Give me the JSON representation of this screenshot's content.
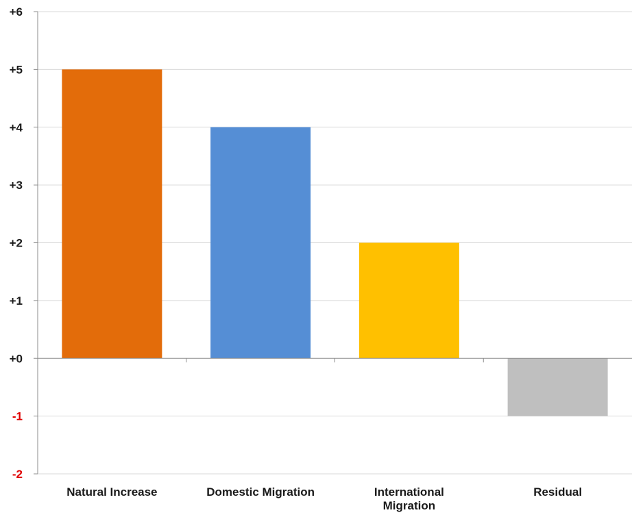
{
  "chart_data": {
    "type": "bar",
    "title": "",
    "xlabel": "",
    "ylabel": "",
    "categories": [
      [
        "Natural Increase"
      ],
      [
        "Domestic Migration"
      ],
      [
        "International",
        "Migration"
      ],
      [
        "Residual"
      ]
    ],
    "values": [
      5,
      4,
      2,
      -1
    ],
    "bar_colors": [
      "#E36C0A",
      "#558ED5",
      "#FFC000",
      "#BFBFBF"
    ],
    "ylim": [
      -2,
      6
    ],
    "yticks": [
      {
        "value": 6,
        "label": "+6"
      },
      {
        "value": 5,
        "label": "+5"
      },
      {
        "value": 4,
        "label": "+4"
      },
      {
        "value": 3,
        "label": "+3"
      },
      {
        "value": 2,
        "label": "+2"
      },
      {
        "value": 1,
        "label": "+1"
      },
      {
        "value": 0,
        "label": "+0"
      },
      {
        "value": -1,
        "label": "-1"
      },
      {
        "value": -2,
        "label": "-2"
      }
    ],
    "positive_tick_color": "#1a1a1a",
    "negative_tick_color": "#E00000",
    "grid": true,
    "grid_color": "#D9D9D9",
    "legend": "none"
  }
}
